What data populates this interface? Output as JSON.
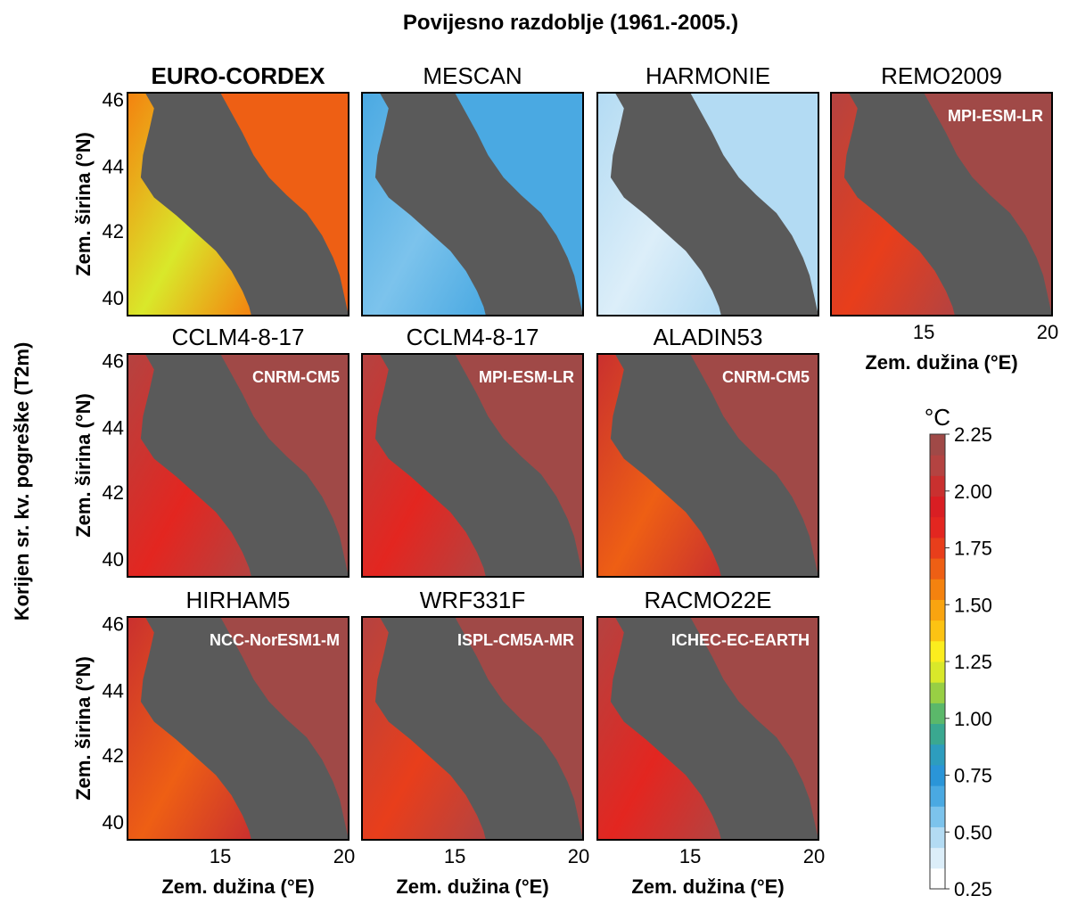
{
  "chart_data": {
    "type": "heatmap",
    "title": "Povijesno razdoblje (1961.-2005.)",
    "ylabel_overall": "Korijen sr. kv. pogreške (T2m)",
    "ylabel": "Zem. širina",
    "ylabel_unit": "(°N)",
    "xlabel": "Zem. dužina",
    "xlabel_unit": "(°E)",
    "y_ticks": [
      "46",
      "44",
      "42",
      "40"
    ],
    "x_ticks": [
      "15",
      "20"
    ],
    "colorbar": {
      "unit": "°C",
      "range": [
        0.25,
        2.25
      ],
      "ticks": [
        "2.25",
        "2.00",
        "1.75",
        "1.50",
        "1.25",
        "1.00",
        "0.75",
        "0.50",
        "0.25"
      ],
      "colors": [
        "#ffffff",
        "#dceef9",
        "#b3dbf3",
        "#7cc3ec",
        "#4aa9e2",
        "#2a95d8",
        "#2d9dbe",
        "#3aa890",
        "#5bb86a",
        "#98cf44",
        "#d9e82a",
        "#fbed1e",
        "#fcc313",
        "#f9a410",
        "#f4820f",
        "#ee5f14",
        "#e83e1b",
        "#e32620",
        "#d91e23",
        "#c9302f",
        "#b44341",
        "#a04947"
      ]
    },
    "panels": [
      {
        "title": "EURO-CORDEX",
        "label": "",
        "typical_rmse": 1.55,
        "title_bold": true
      },
      {
        "title": "MESCAN",
        "label": "",
        "typical_rmse": 0.68,
        "title_bold": false
      },
      {
        "title": "HARMONIE",
        "label": "",
        "typical_rmse": 0.5,
        "title_bold": false
      },
      {
        "title": "REMO2009",
        "label": "MPI-ESM-LR",
        "typical_rmse": 2.1,
        "title_bold": false
      },
      {
        "title": "CCLM4-8-17",
        "label": "CNRM-CM5",
        "typical_rmse": 2.15,
        "title_bold": false
      },
      {
        "title": "CCLM4-8-17",
        "label": "MPI-ESM-LR",
        "typical_rmse": 2.15,
        "title_bold": false
      },
      {
        "title": "ALADIN53",
        "label": "CNRM-CM5",
        "typical_rmse": 2.05,
        "title_bold": false
      },
      {
        "title": "HIRHAM5",
        "label": "NCC-NorESM1-M",
        "typical_rmse": 2.05,
        "title_bold": false
      },
      {
        "title": "WRF331F",
        "label": "ISPL-CM5A-MR",
        "typical_rmse": 2.1,
        "title_bold": false
      },
      {
        "title": "RACMO22E",
        "label": "ICHEC-EC-EARTH",
        "typical_rmse": 2.15,
        "title_bold": false
      }
    ]
  }
}
